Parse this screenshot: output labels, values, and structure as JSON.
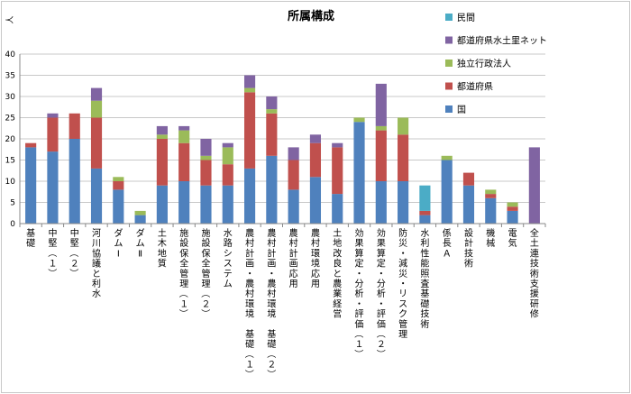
{
  "chart_data": {
    "type": "bar",
    "stacked": true,
    "title": "所属構成",
    "ylabel": "人",
    "xlabel": "",
    "ylim": [
      0,
      40
    ],
    "yticks": [
      0,
      5,
      10,
      15,
      20,
      25,
      30,
      35,
      40
    ],
    "grid": true,
    "legend_position": "right",
    "categories": [
      "基礎",
      "中堅（１）",
      "中堅（２）",
      "河川協議と利水",
      "ダムⅠ",
      "ダムⅡ",
      "土木地質",
      "施設保全管理（１）",
      "施設保全管理（２）",
      "水路システム",
      "農村計画・農村環境　基礎（１）",
      "農村計画・農村環境　基礎（２）",
      "農村計画応用",
      "農村環境応用",
      "土地改良と農業経営",
      "効果算定・分析・評価（１）",
      "効果算定・分析・評価（２）",
      "防災・減災・リスク管理",
      "水利性能照査基礎技術",
      "係長Ａ",
      "設計技術",
      "機械",
      "電気",
      "全土連技術支援研修"
    ],
    "series": [
      {
        "name": "国",
        "color": "#4f81bd",
        "values": [
          18,
          17,
          20,
          13,
          8,
          2,
          9,
          10,
          9,
          9,
          13,
          16,
          8,
          11,
          7,
          24,
          10,
          10,
          2,
          15,
          9,
          6,
          3,
          0
        ]
      },
      {
        "name": "都道府県",
        "color": "#c0504d",
        "values": [
          1,
          8,
          6,
          12,
          2,
          0,
          11,
          9,
          6,
          5,
          18,
          10,
          7,
          8,
          11,
          0,
          12,
          11,
          1,
          0,
          3,
          1,
          1,
          0
        ]
      },
      {
        "name": "独立行政法人",
        "color": "#9bbb59",
        "values": [
          0,
          0,
          0,
          4,
          1,
          1,
          1,
          3,
          1,
          4,
          1,
          1,
          0,
          0,
          0,
          1,
          1,
          4,
          0,
          1,
          0,
          1,
          1,
          0
        ]
      },
      {
        "name": "都道府県水土里ネット",
        "color": "#8064a2",
        "values": [
          0,
          1,
          0,
          3,
          0,
          0,
          2,
          1,
          4,
          1,
          3,
          3,
          3,
          2,
          1,
          0,
          10,
          0,
          0,
          0,
          0,
          0,
          0,
          18
        ]
      },
      {
        "name": "民間",
        "color": "#4bacc6",
        "values": [
          0,
          0,
          0,
          0,
          0,
          0,
          0,
          0,
          0,
          0,
          0,
          0,
          0,
          0,
          0,
          0,
          0,
          0,
          6,
          0,
          0,
          0,
          0,
          0
        ]
      }
    ]
  }
}
